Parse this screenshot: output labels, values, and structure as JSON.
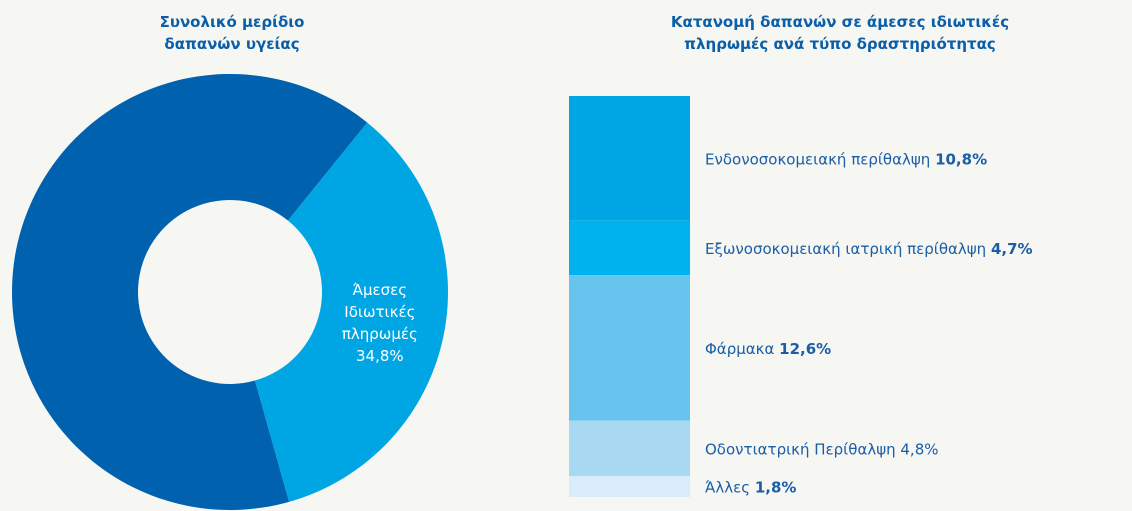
{
  "chart_data": [
    {
      "type": "donut",
      "title": "Συνολικό μερίδιο δαπανών υγείας",
      "categories": [
        "Άμεσες Ιδιωτικές πληρωμές",
        null
      ],
      "values": [
        34.8,
        65.2
      ],
      "value_labels": [
        "34,8%",
        null
      ],
      "colors": [
        "#00a6e4",
        "#0062ae"
      ]
    },
    {
      "type": "stacked_bar",
      "title": "Κατανομή δαπανών σε άμεσες ιδιωτικές πληρωμές ανά τύπο δραστηριότητας",
      "categories": [
        "Ενδονοσοκομειακή περίθαλψη",
        "Εξωνοσοκομειακή ιατρική περίθαλψη",
        "Φάρμακα",
        "Οδοντιατρική Περίθαλψη",
        "Άλλες"
      ],
      "values": [
        10.8,
        4.7,
        12.6,
        4.8,
        1.8
      ],
      "value_labels": [
        "10,8%",
        "4,7%",
        "12,6%",
        "4,8%",
        "1,8%"
      ],
      "value_label_bold": [
        true,
        true,
        true,
        false,
        true
      ],
      "colors": [
        "#00a6e4",
        "#00b2ee",
        "#66c4ef",
        "#a9d8f3",
        "#d8edf9"
      ]
    }
  ]
}
